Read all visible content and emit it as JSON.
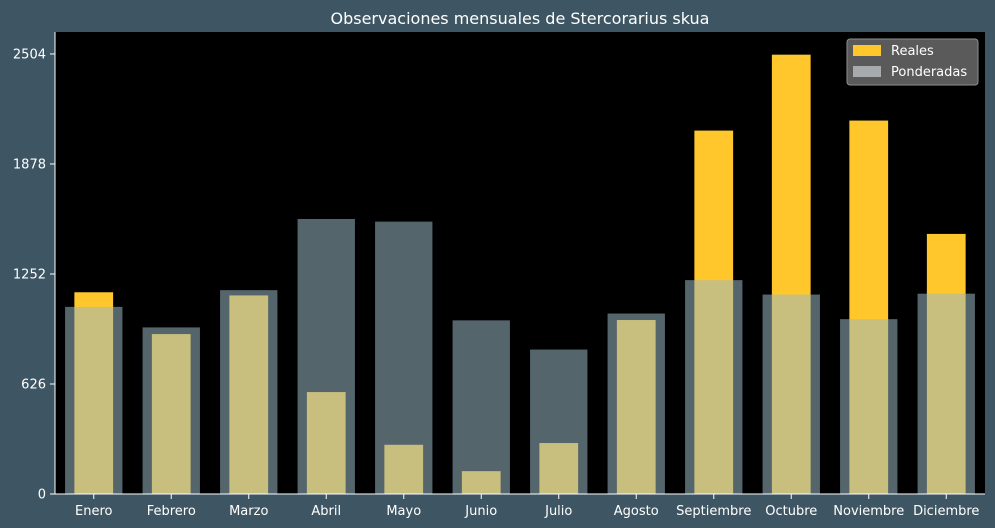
{
  "chart_data": {
    "type": "bar",
    "title": "Observaciones mensuales de Stercorarius skua",
    "xlabel": "",
    "ylabel": "",
    "categories": [
      "Enero",
      "Febrero",
      "Marzo",
      "Abril",
      "Mayo",
      "Junio",
      "Julio",
      "Agosto",
      "Septiembre",
      "Octubre",
      "Noviembre",
      "Diciembre"
    ],
    "series": [
      {
        "name": "Reales",
        "color": "#ffc72c",
        "values": [
          1148,
          910,
          1130,
          580,
          280,
          130,
          290,
          990,
          2068,
          2500,
          2125,
          1480
        ]
      },
      {
        "name": "Ponderadas",
        "color": "#e8eef2",
        "values": [
          1065,
          948,
          1160,
          1565,
          1550,
          988,
          822,
          1027,
          1217,
          1135,
          995,
          1140
        ]
      }
    ],
    "yticks": [
      0,
      626,
      1252,
      1878,
      2504
    ],
    "ylim": [
      0,
      2629
    ],
    "grid": false,
    "legend_position": "top-right",
    "colors": {
      "page_background": "#3e5663",
      "plot_background": "#000000",
      "text": "#ffffff",
      "axis": "#ffffff"
    }
  }
}
